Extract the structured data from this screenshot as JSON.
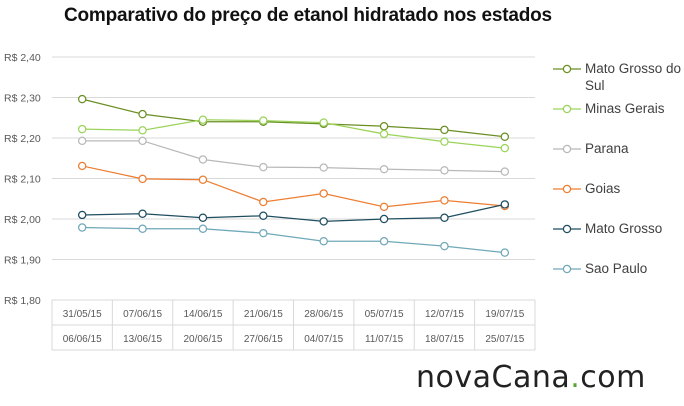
{
  "chart_data": {
    "type": "line",
    "title": "Comparativo do preço de etanol hidratado nos estados",
    "categories": [
      [
        "31/05/15",
        "06/06/15"
      ],
      [
        "07/06/15",
        "13/06/15"
      ],
      [
        "14/06/15",
        "20/06/15"
      ],
      [
        "21/06/15",
        "27/06/15"
      ],
      [
        "28/06/15",
        "04/07/15"
      ],
      [
        "05/07/15",
        "11/07/15"
      ],
      [
        "12/07/15",
        "18/07/15"
      ],
      [
        "19/07/15",
        "25/07/15"
      ]
    ],
    "ylim": [
      1.8,
      2.4
    ],
    "yticks": [
      "R$ 2,40",
      "R$ 2,30",
      "R$ 2,20",
      "R$ 2,10",
      "R$ 2,00",
      "R$ 1,90",
      "R$ 1,80"
    ],
    "yticks_values": [
      2.4,
      2.3,
      2.2,
      2.1,
      2.0,
      1.9,
      1.8
    ],
    "grid": true,
    "legend_position": "right",
    "series": [
      {
        "name": "Mato Grosso do Sul",
        "color": "#6b8e23",
        "values": [
          2.296,
          2.259,
          2.24,
          2.24,
          2.235,
          2.229,
          2.22,
          2.203
        ]
      },
      {
        "name": "Minas Gerais",
        "color": "#9bd35a",
        "values": [
          2.222,
          2.219,
          2.245,
          2.243,
          2.238,
          2.21,
          2.191,
          2.175
        ]
      },
      {
        "name": "Parana",
        "color": "#b8b8b8",
        "values": [
          2.193,
          2.193,
          2.147,
          2.128,
          2.127,
          2.123,
          2.12,
          2.117
        ]
      },
      {
        "name": "Goias",
        "color": "#ed7d31",
        "values": [
          2.131,
          2.099,
          2.097,
          2.042,
          2.063,
          2.03,
          2.046,
          2.032
        ]
      },
      {
        "name": "Mato Grosso",
        "color": "#1f4e5f",
        "values": [
          2.01,
          2.013,
          2.003,
          2.008,
          1.994,
          2.0,
          2.003,
          2.036
        ]
      },
      {
        "name": "Sao Paulo",
        "color": "#6fa8b8",
        "values": [
          1.979,
          1.976,
          1.976,
          1.965,
          1.945,
          1.945,
          1.933,
          1.917
        ]
      }
    ]
  },
  "brand": {
    "text_main": "novaCana",
    "text_dot": ".",
    "text_tld": "com",
    "accent_color": "#5aa532"
  }
}
